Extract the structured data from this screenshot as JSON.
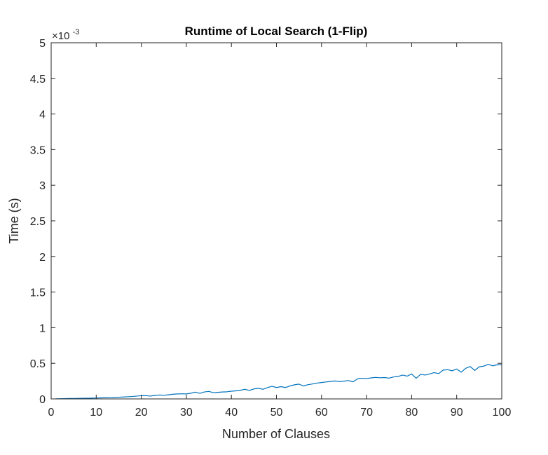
{
  "chart_data": {
    "type": "line",
    "title": "Runtime of Local Search (1-Flip)",
    "xlabel": "Number of Clauses",
    "ylabel": "Time (s)",
    "xlim": [
      0,
      100
    ],
    "ylim": [
      0,
      5
    ],
    "y_exponent_base": "×10",
    "y_exponent": "-3",
    "xticks": [
      "0",
      "10",
      "20",
      "30",
      "40",
      "50",
      "60",
      "70",
      "80",
      "90",
      "100"
    ],
    "yticks": [
      "0",
      "0.5",
      "1",
      "1.5",
      "2",
      "2.5",
      "3",
      "3.5",
      "4",
      "4.5",
      "5"
    ],
    "grid": false,
    "series": [
      {
        "color": "#0072bd",
        "x": [
          1,
          2,
          3,
          4,
          5,
          6,
          7,
          8,
          9,
          10,
          11,
          12,
          13,
          14,
          15,
          16,
          17,
          18,
          19,
          20,
          21,
          22,
          23,
          24,
          25,
          26,
          27,
          28,
          29,
          30,
          31,
          32,
          33,
          34,
          35,
          36,
          37,
          38,
          39,
          40,
          41,
          42,
          43,
          44,
          45,
          46,
          47,
          48,
          49,
          50,
          51,
          52,
          53,
          54,
          55,
          56,
          57,
          58,
          59,
          60,
          61,
          62,
          63,
          64,
          65,
          66,
          67,
          68,
          69,
          70,
          71,
          72,
          73,
          74,
          75,
          76,
          77,
          78,
          79,
          80,
          81,
          82,
          83,
          84,
          85,
          86,
          87,
          88,
          89,
          90,
          91,
          92,
          93,
          94,
          95,
          96,
          97,
          98,
          99,
          100
        ],
        "y": [
          0.002,
          0.003,
          0.004,
          0.006,
          0.007,
          0.008,
          0.009,
          0.01,
          0.011,
          0.013,
          0.015,
          0.017,
          0.019,
          0.021,
          0.024,
          0.027,
          0.03,
          0.034,
          0.04,
          0.045,
          0.046,
          0.04,
          0.048,
          0.055,
          0.05,
          0.058,
          0.065,
          0.07,
          0.072,
          0.07,
          0.08,
          0.095,
          0.078,
          0.098,
          0.105,
          0.088,
          0.092,
          0.097,
          0.1,
          0.108,
          0.113,
          0.122,
          0.135,
          0.12,
          0.14,
          0.15,
          0.135,
          0.158,
          0.178,
          0.16,
          0.172,
          0.16,
          0.182,
          0.198,
          0.208,
          0.182,
          0.2,
          0.21,
          0.222,
          0.23,
          0.238,
          0.245,
          0.252,
          0.243,
          0.25,
          0.258,
          0.24,
          0.282,
          0.29,
          0.286,
          0.295,
          0.302,
          0.297,
          0.3,
          0.292,
          0.308,
          0.316,
          0.335,
          0.32,
          0.35,
          0.29,
          0.345,
          0.335,
          0.35,
          0.37,
          0.355,
          0.405,
          0.41,
          0.395,
          0.42,
          0.375,
          0.43,
          0.455,
          0.4,
          0.45,
          0.46,
          0.485,
          0.465,
          0.48,
          0.478
        ]
      }
    ]
  }
}
